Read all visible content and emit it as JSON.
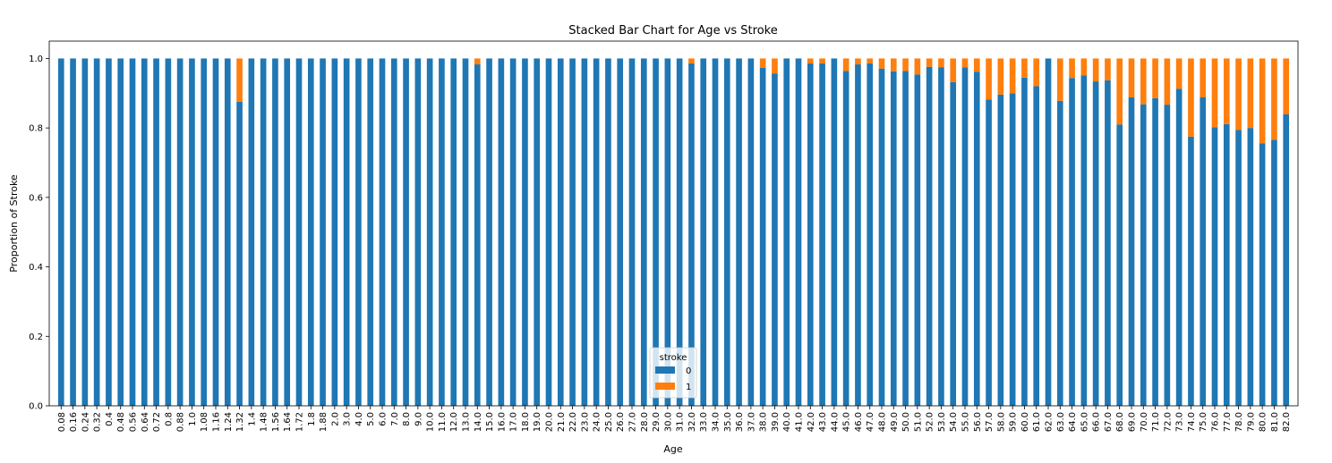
{
  "chart_data": {
    "type": "bar",
    "stacked": true,
    "title": "Stacked Bar Chart for Age vs Stroke",
    "xlabel": "Age",
    "ylabel": "Proportion of Stroke",
    "ylim": [
      0,
      1.05
    ],
    "yticks": [
      "0.0",
      "0.2",
      "0.4",
      "0.6",
      "0.8",
      "1.0"
    ],
    "grid": false,
    "legend": {
      "title": "stroke",
      "placement": "bottom-center"
    },
    "categories": [
      "0.08",
      "0.16",
      "0.24",
      "0.32",
      "0.4",
      "0.48",
      "0.56",
      "0.64",
      "0.72",
      "0.8",
      "0.88",
      "1.0",
      "1.08",
      "1.16",
      "1.24",
      "1.32",
      "1.4",
      "1.48",
      "1.56",
      "1.64",
      "1.72",
      "1.8",
      "1.88",
      "2.0",
      "3.0",
      "4.0",
      "5.0",
      "6.0",
      "7.0",
      "8.0",
      "9.0",
      "10.0",
      "11.0",
      "12.0",
      "13.0",
      "14.0",
      "15.0",
      "16.0",
      "17.0",
      "18.0",
      "19.0",
      "20.0",
      "21.0",
      "22.0",
      "23.0",
      "24.0",
      "25.0",
      "26.0",
      "27.0",
      "28.0",
      "29.0",
      "30.0",
      "31.0",
      "32.0",
      "33.0",
      "34.0",
      "35.0",
      "36.0",
      "37.0",
      "38.0",
      "39.0",
      "40.0",
      "41.0",
      "42.0",
      "43.0",
      "44.0",
      "45.0",
      "46.0",
      "47.0",
      "48.0",
      "49.0",
      "50.0",
      "51.0",
      "52.0",
      "53.0",
      "54.0",
      "55.0",
      "56.0",
      "57.0",
      "58.0",
      "59.0",
      "60.0",
      "61.0",
      "62.0",
      "63.0",
      "64.0",
      "65.0",
      "66.0",
      "67.0",
      "68.0",
      "69.0",
      "70.0",
      "71.0",
      "72.0",
      "73.0",
      "74.0",
      "75.0",
      "76.0",
      "77.0",
      "78.0",
      "79.0",
      "80.0",
      "81.0",
      "82.0"
    ],
    "series": [
      {
        "name": "0",
        "color": "#1f77b4",
        "values": [
          1,
          1,
          1,
          1,
          1,
          1,
          1,
          1,
          1,
          1,
          1,
          1,
          1,
          1,
          1,
          0.875,
          1,
          1,
          1,
          1,
          1,
          1,
          1,
          1,
          1,
          1,
          1,
          1,
          1,
          1,
          1,
          1,
          1,
          1,
          1,
          0.983,
          1,
          1,
          1,
          1,
          1,
          1,
          1,
          1,
          1,
          1,
          1,
          1,
          1,
          1,
          1,
          1,
          1,
          0.986,
          1,
          1,
          1,
          1,
          1,
          0.973,
          0.957,
          1,
          1,
          0.986,
          0.986,
          1,
          0.964,
          0.983,
          0.986,
          0.971,
          0.963,
          0.964,
          0.954,
          0.976,
          0.975,
          0.932,
          0.974,
          0.962,
          0.882,
          0.896,
          0.9,
          0.945,
          0.92,
          1,
          0.878,
          0.944,
          0.951,
          0.934,
          0.937,
          0.81,
          0.888,
          0.868,
          0.886,
          0.867,
          0.913,
          0.775,
          0.888,
          0.802,
          0.811,
          0.794,
          0.8,
          0.756,
          0.766,
          0.839
        ]
      },
      {
        "name": "1",
        "color": "#ff7f0e",
        "values": [
          0,
          0,
          0,
          0,
          0,
          0,
          0,
          0,
          0,
          0,
          0,
          0,
          0,
          0,
          0,
          0.125,
          0,
          0,
          0,
          0,
          0,
          0,
          0,
          0,
          0,
          0,
          0,
          0,
          0,
          0,
          0,
          0,
          0,
          0,
          0,
          0.017,
          0,
          0,
          0,
          0,
          0,
          0,
          0,
          0,
          0,
          0,
          0,
          0,
          0,
          0,
          0,
          0,
          0,
          0.014,
          0,
          0,
          0,
          0,
          0,
          0.027,
          0.043,
          0,
          0,
          0.014,
          0.014,
          0,
          0.036,
          0.017,
          0.014,
          0.029,
          0.037,
          0.036,
          0.046,
          0.024,
          0.025,
          0.068,
          0.026,
          0.038,
          0.118,
          0.104,
          0.1,
          0.055,
          0.08,
          0,
          0.122,
          0.056,
          0.049,
          0.066,
          0.063,
          0.19,
          0.112,
          0.132,
          0.114,
          0.133,
          0.087,
          0.225,
          0.112,
          0.198,
          0.189,
          0.206,
          0.2,
          0.244,
          0.234,
          0.161
        ]
      }
    ]
  }
}
